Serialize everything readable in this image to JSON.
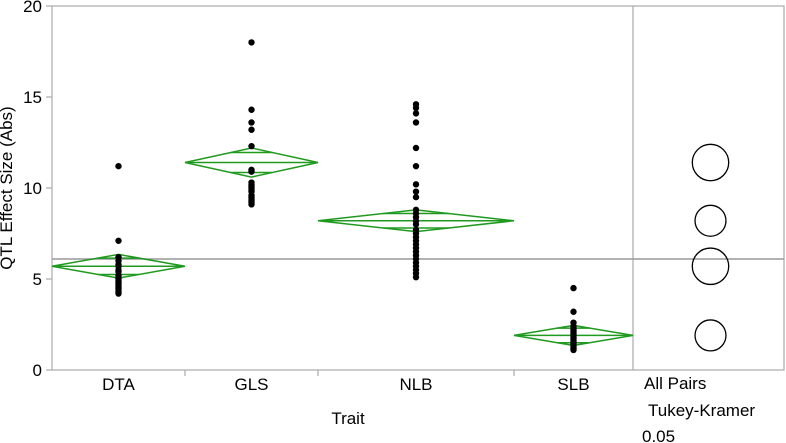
{
  "chart_data": {
    "type": "scatter",
    "subtype": "one-way means diamonds with comparison circles",
    "xlabel": "Trait",
    "ylabel": "QTL Effect Size (Abs)",
    "ylim": [
      0,
      20
    ],
    "yticks": [
      0,
      5,
      10,
      15,
      20
    ],
    "grand_mean": 6.1,
    "categories": [
      "DTA",
      "GLS",
      "NLB",
      "SLB"
    ],
    "groups": [
      {
        "name": "DTA",
        "mean": 5.7,
        "ci": [
          5.05,
          6.35
        ],
        "overlap": [
          5.25,
          6.15
        ],
        "points": [
          11.2,
          7.1,
          6.2,
          6.0,
          5.8,
          5.7,
          5.5,
          5.4,
          5.2,
          5.1,
          5.0,
          4.9,
          4.8,
          4.7,
          4.6,
          4.5,
          4.4,
          4.3,
          4.2
        ]
      },
      {
        "name": "GLS",
        "mean": 11.4,
        "ci": [
          10.6,
          12.2
        ],
        "overlap": [
          10.85,
          11.95
        ],
        "points": [
          18.0,
          14.3,
          13.6,
          13.2,
          12.3,
          11.0,
          10.9,
          10.3,
          10.2,
          10.1,
          10.0,
          9.9,
          9.8,
          9.6,
          9.5,
          9.4,
          9.3,
          9.2,
          9.1
        ]
      },
      {
        "name": "NLB",
        "mean": 8.2,
        "ci": [
          7.6,
          8.8
        ],
        "overlap": [
          7.8,
          8.6
        ],
        "points": [
          14.6,
          14.4,
          14.1,
          13.6,
          12.2,
          11.2,
          10.2,
          9.8,
          9.5,
          8.8,
          8.6,
          8.4,
          8.2,
          8.0,
          7.7,
          7.5,
          7.3,
          7.1,
          6.9,
          6.7,
          6.5,
          6.3,
          6.1,
          5.9,
          5.7,
          5.5,
          5.3,
          5.1
        ]
      },
      {
        "name": "SLB",
        "mean": 1.9,
        "ci": [
          1.35,
          2.45
        ],
        "overlap": [
          1.5,
          2.3
        ],
        "points": [
          4.5,
          3.2,
          2.6,
          2.4,
          2.3,
          2.2,
          2.1,
          2.0,
          1.9,
          1.8,
          1.7,
          1.6,
          1.5,
          1.4,
          1.3,
          1.2,
          1.1
        ]
      }
    ],
    "comparison_panel": {
      "labels": [
        "All Pairs",
        "Tukey-Kramer",
        "0.05"
      ],
      "circles": [
        {
          "group": "GLS",
          "center": 11.4,
          "radius": 1.0
        },
        {
          "group": "NLB",
          "center": 8.2,
          "radius": 0.85
        },
        {
          "group": "DTA",
          "center": 5.7,
          "radius": 1.0
        },
        {
          "group": "SLB",
          "center": 1.9,
          "radius": 0.85
        }
      ]
    },
    "grid": false,
    "colors": {
      "diamond": "#1f9a1f",
      "points": "#000000",
      "frame": "#aaaaaa",
      "mean_line": "#999999"
    }
  }
}
